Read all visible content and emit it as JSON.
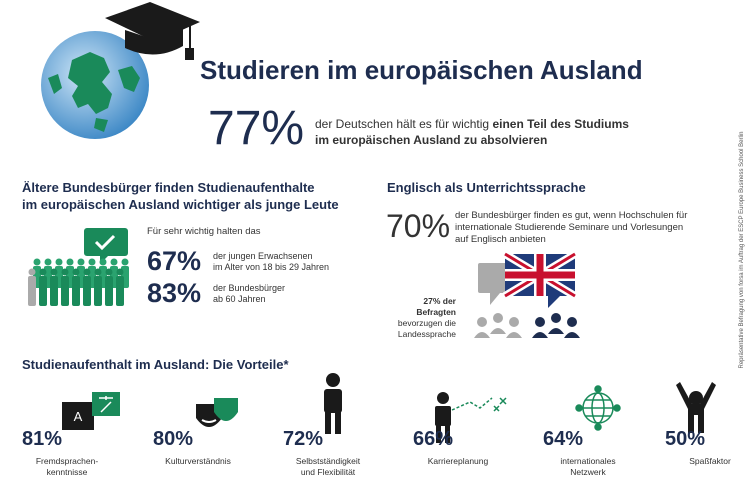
{
  "title": "Studieren im europäischen Ausland",
  "hero": {
    "value": "77%",
    "lines": [
      "der Deutschen hält es für wichtig",
      "im europäischen Ausland zu absolvieren"
    ],
    "bold_part": "einen Teil des Studiums"
  },
  "age_section": {
    "heading": [
      "Ältere Bundesbürger finden Studienaufenthalte",
      "im europäischen Ausland wichtiger als junge Leute"
    ],
    "intro": "Für sehr wichtig halten das",
    "groups": [
      {
        "value": "67%",
        "lines": [
          "der jungen Erwachsenen",
          "im Alter von 18 bis 29 Jahren"
        ]
      },
      {
        "value": "83%",
        "lines": [
          "der Bundesbürger",
          "ab 60 Jahren"
        ]
      }
    ]
  },
  "english_section": {
    "heading": "Englisch als Unterrichtssprache",
    "value": "70%",
    "lines": [
      "der Bundesbürger finden es gut, wenn Hochschulen für",
      "internationale Studierende Seminare und Vorlesungen",
      "auf Englisch anbieten"
    ],
    "minority": {
      "bold_lines": [
        "27% der",
        "Befragten"
      ],
      "lines": [
        "bevorzugen die",
        "Landessprache"
      ]
    }
  },
  "benefits": {
    "heading": "Studienaufenthalt im Ausland: Die Vorteile*",
    "items": [
      {
        "value": "81%",
        "lines": [
          "Fremdsprachen-",
          "kenntnisse"
        ]
      },
      {
        "value": "80%",
        "lines": [
          "Kulturverständnis"
        ]
      },
      {
        "value": "72%",
        "lines": [
          "Selbstständigkeit",
          "und Flexibilität"
        ]
      },
      {
        "value": "66%",
        "lines": [
          "Karriereplanung"
        ]
      },
      {
        "value": "64%",
        "lines": [
          "internationales",
          "Netzwerk"
        ]
      },
      {
        "value": "50%",
        "lines": [
          "Spaßfaktor"
        ]
      }
    ]
  },
  "source": "Repräsentative Befragung von forsa im Auftrag der ESCP Europe Business School Berlin"
}
